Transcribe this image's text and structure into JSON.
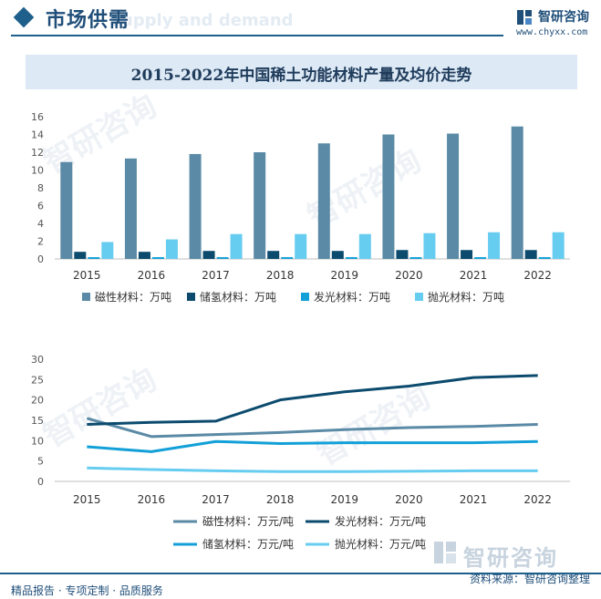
{
  "header": {
    "section_title": "市场供需",
    "section_ghost": "Supply and demand",
    "logo_name": "智研咨询",
    "logo_url": "www.chyxx.com"
  },
  "colors": {
    "brand": "#1f4e79",
    "magnetic": "#5a8aa5",
    "hydrogen_storage": "#0c4b6e",
    "luminescent": "#13a0d8",
    "polishing": "#66ccf0"
  },
  "chart_data": [
    {
      "type": "bar",
      "title": "2015-2022年中国稀土功能材料产量及均价走势",
      "categories": [
        "2015",
        "2016",
        "2017",
        "2018",
        "2019",
        "2020",
        "2021",
        "2022"
      ],
      "ylim": [
        0,
        16
      ],
      "yticks": [
        0,
        2,
        4,
        6,
        8,
        10,
        12,
        14,
        16
      ],
      "grid": false,
      "legend_position": "bottom",
      "series": [
        {
          "name": "磁性材料：万吨",
          "color": "#5a8aa5",
          "values": [
            10.9,
            11.3,
            11.8,
            12.0,
            13.0,
            14.0,
            14.1,
            14.9
          ]
        },
        {
          "name": "储氢材料：万吨",
          "color": "#0c4b6e",
          "values": [
            0.8,
            0.8,
            0.9,
            0.9,
            0.9,
            1.0,
            1.0,
            1.0
          ]
        },
        {
          "name": "发光材料：万吨",
          "color": "#13a0d8",
          "values": [
            0.2,
            0.2,
            0.2,
            0.2,
            0.2,
            0.2,
            0.2,
            0.2
          ]
        },
        {
          "name": "抛光材料：万吨",
          "color": "#66ccf0",
          "values": [
            1.9,
            2.2,
            2.8,
            2.8,
            2.8,
            2.9,
            3.0,
            3.0
          ]
        }
      ]
    },
    {
      "type": "line",
      "categories": [
        "2015",
        "2016",
        "2017",
        "2018",
        "2019",
        "2020",
        "2021",
        "2022"
      ],
      "ylim": [
        0,
        30
      ],
      "yticks": [
        0,
        5,
        10,
        15,
        20,
        25,
        30
      ],
      "grid": false,
      "legend_position": "bottom",
      "series": [
        {
          "name": "磁性材料：万元/吨",
          "color": "#5a8aa5",
          "values": [
            15.5,
            11.0,
            11.5,
            12.0,
            12.7,
            13.2,
            13.5,
            14.0
          ]
        },
        {
          "name": "发光材料：万元/吨",
          "color": "#0c4b6e",
          "values": [
            14.0,
            14.5,
            14.8,
            20.0,
            22.0,
            23.4,
            25.5,
            26.0
          ]
        },
        {
          "name": "储氢材料：万元/吨",
          "color": "#13a0d8",
          "values": [
            8.5,
            7.3,
            9.8,
            9.3,
            9.5,
            9.5,
            9.5,
            9.8
          ]
        },
        {
          "name": "抛光材料：万元/吨",
          "color": "#66ccf0",
          "values": [
            3.3,
            2.9,
            2.6,
            2.4,
            2.4,
            2.5,
            2.6,
            2.6
          ]
        }
      ]
    }
  ],
  "footer": {
    "left": "精品报告 · 专项定制 · 品质服务",
    "source": "资料来源：智研咨询整理",
    "watermark": "智研咨询"
  }
}
